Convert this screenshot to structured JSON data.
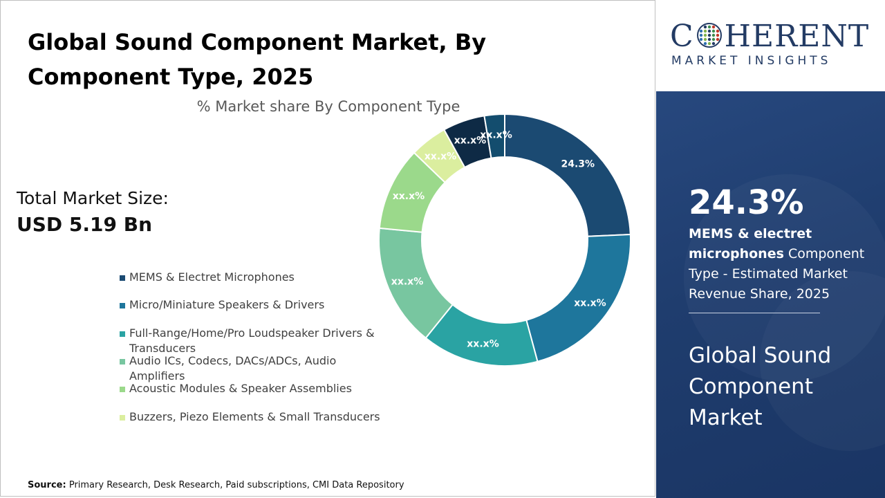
{
  "title": "Global Sound Component Market, By Component Type, 2025",
  "subtitle": "% Market share By Component Type",
  "total_market": {
    "label": "Total Market Size:",
    "value": "USD 5.19 Bn"
  },
  "source": {
    "label": "Source:",
    "text": "Primary Research, Desk Research, Paid subscriptions, CMI Data Repository"
  },
  "logo": {
    "before": "C",
    "after": "HERENT",
    "sub": "MARKET INSIGHTS"
  },
  "highlight": {
    "stat": "24.3%",
    "bold": "MEMS & electret microphones",
    "rest": " Component Type - Estimated Market Revenue Share, 2025",
    "market": "Global Sound Component Market"
  },
  "chart_data": {
    "type": "pie",
    "donut": true,
    "categories": [
      "MEMS & Electret Microphones",
      "Micro/Miniature Speakers & Drivers",
      "Full-Range/Home/Pro Loudspeaker Drivers & Transducers",
      "Audio ICs, Codecs, DACs/ADCs, Audio Amplifiers",
      "Acoustic Modules & Speaker Assemblies",
      "Buzzers, Piezo Elements & Small Transducers",
      "",
      ""
    ],
    "values": [
      24.3,
      21.5,
      15.0,
      15.7,
      10.7,
      4.8,
      5.4,
      2.6
    ],
    "labels": [
      "24.3%",
      "xx.x%",
      "xx.x%",
      "xx.x%",
      "xx.x%",
      "xx.x%",
      "xx.x%",
      "xx.x%"
    ],
    "colors": [
      "#1b4a72",
      "#1e769c",
      "#2aa3a3",
      "#78c6a0",
      "#9bd98b",
      "#dbee9f",
      "#0e2a45",
      "#134d6e"
    ],
    "label_colors": [
      "#ffffff",
      "#ffffff",
      "#ffffff",
      "#ffffff",
      "#ffffff",
      "#ffffff",
      "#ffffff",
      "#ffffff"
    ],
    "legend": [
      "MEMS & Electret Microphones",
      "Micro/Miniature Speakers & Drivers",
      "Full-Range/Home/Pro Loudspeaker Drivers & Transducers",
      "Audio ICs, Codecs, DACs/ADCs, Audio Amplifiers",
      "Acoustic Modules & Speaker Assemblies",
      "Buzzers, Piezo Elements & Small Transducers"
    ]
  }
}
